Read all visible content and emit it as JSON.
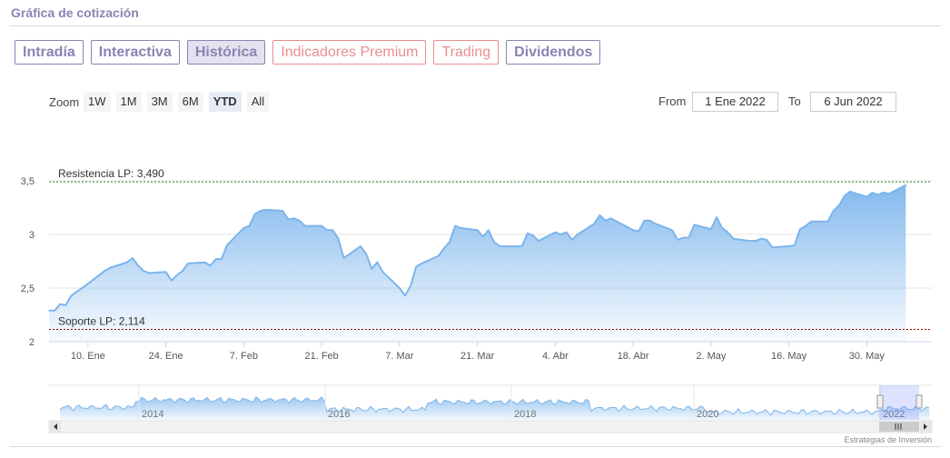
{
  "header": {
    "title": "Gráfica de cotización"
  },
  "tabs": [
    {
      "label": "Intradía",
      "active": false,
      "premium": false
    },
    {
      "label": "Interactiva",
      "active": false,
      "premium": false
    },
    {
      "label": "Histórica",
      "active": true,
      "premium": false
    },
    {
      "label": "Indicadores Premium",
      "active": false,
      "premium": true
    },
    {
      "label": "Trading",
      "active": false,
      "premium": true
    },
    {
      "label": "Dividendos",
      "active": false,
      "premium": false
    }
  ],
  "zoom": {
    "label": "Zoom",
    "options": [
      "1W",
      "1M",
      "3M",
      "6M",
      "YTD",
      "All"
    ],
    "selected": "YTD"
  },
  "range": {
    "from_label": "From",
    "from_value": "1 Ene 2022",
    "to_label": "To",
    "to_value": "6 Jun 2022"
  },
  "credit": "Estrategias de Inversión",
  "colors": {
    "accent": "#8b83b3",
    "premium": "#e88e8e",
    "series": "#7cb5ec",
    "resistance": "#2e7d32",
    "support": "#8b0000"
  },
  "chart_data": {
    "type": "area",
    "title": "",
    "xlabel": "",
    "ylabel": "",
    "ylim": [
      2,
      3.5
    ],
    "y_ticks": [
      {
        "value": 2,
        "label": "2"
      },
      {
        "value": 2.5,
        "label": "2,5"
      },
      {
        "value": 3,
        "label": "3"
      },
      {
        "value": 3.5,
        "label": "3,5"
      }
    ],
    "x_ticks": [
      {
        "date": "2022-01-10",
        "label": "10. Ene"
      },
      {
        "date": "2022-01-24",
        "label": "24. Ene"
      },
      {
        "date": "2022-02-07",
        "label": "7. Feb"
      },
      {
        "date": "2022-02-21",
        "label": "21. Feb"
      },
      {
        "date": "2022-03-07",
        "label": "7. Mar"
      },
      {
        "date": "2022-03-21",
        "label": "21. Mar"
      },
      {
        "date": "2022-04-04",
        "label": "4. Abr"
      },
      {
        "date": "2022-04-18",
        "label": "18. Abr"
      },
      {
        "date": "2022-05-02",
        "label": "2. May"
      },
      {
        "date": "2022-05-16",
        "label": "16. May"
      },
      {
        "date": "2022-05-30",
        "label": "30. May"
      }
    ],
    "grid": true,
    "reference_lines": [
      {
        "label": "Resistencia LP: 3,490",
        "value": 3.49,
        "style": "dashed"
      },
      {
        "label": "Soporte LP: 2,114",
        "value": 2.114,
        "style": "dashed"
      }
    ],
    "series": [
      {
        "points": [
          [
            "2022-01-03",
            2.29
          ],
          [
            "2022-01-04",
            2.29
          ],
          [
            "2022-01-05",
            2.35
          ],
          [
            "2022-01-06",
            2.34
          ],
          [
            "2022-01-07",
            2.43
          ],
          [
            "2022-01-10",
            2.54
          ],
          [
            "2022-01-11",
            2.58
          ],
          [
            "2022-01-12",
            2.62
          ],
          [
            "2022-01-13",
            2.66
          ],
          [
            "2022-01-14",
            2.69
          ],
          [
            "2022-01-17",
            2.74
          ],
          [
            "2022-01-18",
            2.78
          ],
          [
            "2022-01-19",
            2.71
          ],
          [
            "2022-01-20",
            2.66
          ],
          [
            "2022-01-21",
            2.64
          ],
          [
            "2022-01-24",
            2.65
          ],
          [
            "2022-01-25",
            2.57
          ],
          [
            "2022-01-26",
            2.62
          ],
          [
            "2022-01-27",
            2.66
          ],
          [
            "2022-01-28",
            2.73
          ],
          [
            "2022-01-31",
            2.74
          ],
          [
            "2022-02-01",
            2.71
          ],
          [
            "2022-02-02",
            2.77
          ],
          [
            "2022-02-03",
            2.77
          ],
          [
            "2022-02-04",
            2.9
          ],
          [
            "2022-02-07",
            3.06
          ],
          [
            "2022-02-08",
            3.08
          ],
          [
            "2022-02-09",
            3.19
          ],
          [
            "2022-02-10",
            3.22
          ],
          [
            "2022-02-11",
            3.23
          ],
          [
            "2022-02-14",
            3.22
          ],
          [
            "2022-02-15",
            3.14
          ],
          [
            "2022-02-16",
            3.15
          ],
          [
            "2022-02-17",
            3.13
          ],
          [
            "2022-02-18",
            3.08
          ],
          [
            "2022-02-21",
            3.08
          ],
          [
            "2022-02-22",
            3.04
          ],
          [
            "2022-02-23",
            3.04
          ],
          [
            "2022-02-24",
            2.96
          ],
          [
            "2022-02-25",
            2.78
          ],
          [
            "2022-02-28",
            2.89
          ],
          [
            "2022-03-01",
            2.82
          ],
          [
            "2022-03-02",
            2.68
          ],
          [
            "2022-03-03",
            2.74
          ],
          [
            "2022-03-04",
            2.65
          ],
          [
            "2022-03-07",
            2.5
          ],
          [
            "2022-03-08",
            2.43
          ],
          [
            "2022-03-09",
            2.52
          ],
          [
            "2022-03-10",
            2.7
          ],
          [
            "2022-03-11",
            2.73
          ],
          [
            "2022-03-14",
            2.8
          ],
          [
            "2022-03-15",
            2.87
          ],
          [
            "2022-03-16",
            2.93
          ],
          [
            "2022-03-17",
            3.08
          ],
          [
            "2022-03-18",
            3.06
          ],
          [
            "2022-03-21",
            3.04
          ],
          [
            "2022-03-22",
            2.98
          ],
          [
            "2022-03-23",
            3.04
          ],
          [
            "2022-03-24",
            2.93
          ],
          [
            "2022-03-25",
            2.89
          ],
          [
            "2022-03-28",
            2.89
          ],
          [
            "2022-03-29",
            2.89
          ],
          [
            "2022-03-30",
            3.01
          ],
          [
            "2022-03-31",
            2.99
          ],
          [
            "2022-04-01",
            2.94
          ],
          [
            "2022-04-04",
            3.02
          ],
          [
            "2022-04-05",
            3.0
          ],
          [
            "2022-04-06",
            3.02
          ],
          [
            "2022-04-07",
            2.95
          ],
          [
            "2022-04-08",
            3.0
          ],
          [
            "2022-04-11",
            3.1
          ],
          [
            "2022-04-12",
            3.18
          ],
          [
            "2022-04-13",
            3.13
          ],
          [
            "2022-04-14",
            3.15
          ],
          [
            "2022-04-18",
            3.04
          ],
          [
            "2022-04-19",
            3.03
          ],
          [
            "2022-04-20",
            3.13
          ],
          [
            "2022-04-21",
            3.13
          ],
          [
            "2022-04-22",
            3.1
          ],
          [
            "2022-04-25",
            3.04
          ],
          [
            "2022-04-26",
            2.95
          ],
          [
            "2022-04-27",
            2.97
          ],
          [
            "2022-04-28",
            2.97
          ],
          [
            "2022-04-29",
            3.09
          ],
          [
            "2022-05-02",
            3.05
          ],
          [
            "2022-05-03",
            3.16
          ],
          [
            "2022-05-04",
            3.06
          ],
          [
            "2022-05-05",
            3.02
          ],
          [
            "2022-05-06",
            2.96
          ],
          [
            "2022-05-09",
            2.94
          ],
          [
            "2022-05-10",
            2.94
          ],
          [
            "2022-05-11",
            2.96
          ],
          [
            "2022-05-12",
            2.95
          ],
          [
            "2022-05-13",
            2.88
          ],
          [
            "2022-05-16",
            2.89
          ],
          [
            "2022-05-17",
            2.9
          ],
          [
            "2022-05-18",
            3.05
          ],
          [
            "2022-05-19",
            3.08
          ],
          [
            "2022-05-20",
            3.12
          ],
          [
            "2022-05-23",
            3.12
          ],
          [
            "2022-05-24",
            3.22
          ],
          [
            "2022-05-25",
            3.27
          ],
          [
            "2022-05-26",
            3.36
          ],
          [
            "2022-05-27",
            3.4
          ],
          [
            "2022-05-30",
            3.35
          ],
          [
            "2022-05-31",
            3.39
          ],
          [
            "2022-06-01",
            3.37
          ],
          [
            "2022-06-02",
            3.39
          ],
          [
            "2022-06-03",
            3.38
          ],
          [
            "2022-06-06",
            3.46
          ]
        ]
      }
    ],
    "navigator": {
      "labels": [
        "2014",
        "2016",
        "2018",
        "2020",
        "2022"
      ]
    }
  }
}
